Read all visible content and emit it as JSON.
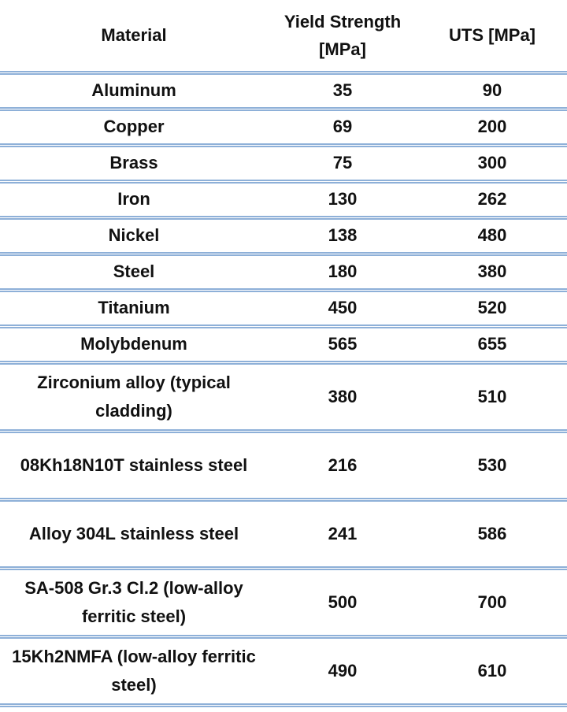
{
  "table": {
    "header": [
      "Material",
      "Yield Strength [MPa]",
      "UTS [MPa]"
    ],
    "rows": [
      [
        "Aluminum",
        35,
        90
      ],
      [
        "Copper",
        69,
        200
      ],
      [
        "Brass",
        75,
        300
      ],
      [
        "Iron",
        130,
        262
      ],
      [
        "Nickel",
        138,
        480
      ],
      [
        "Steel",
        180,
        380
      ],
      [
        "Titanium",
        450,
        520
      ],
      [
        "Molybdenum",
        565,
        655
      ],
      [
        "Zirconium alloy (typical cladding)",
        380,
        510
      ],
      [
        "08Kh18N10T stainless steel",
        216,
        530
      ],
      [
        "Alloy 304L stainless steel",
        241,
        586
      ],
      [
        "SA-508 Gr.3 Cl.2 (low-alloy ferritic steel)",
        500,
        700
      ],
      [
        "15Kh2NMFA (low-alloy ferritic steel)",
        490,
        610
      ]
    ]
  }
}
